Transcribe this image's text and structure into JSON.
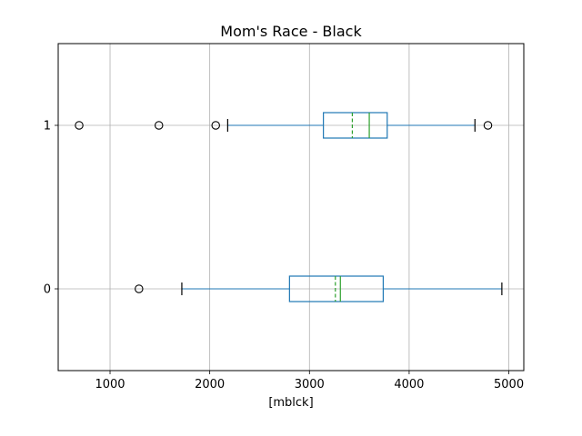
{
  "chart_data": {
    "type": "boxplot",
    "orientation": "horizontal",
    "title": "Mom's Race - Black",
    "xlabel": "[mblck]",
    "ylabel": "",
    "xlim": [
      480,
      5150
    ],
    "x_ticks": [
      1000,
      2000,
      3000,
      4000,
      5000
    ],
    "categories": [
      "0",
      "1"
    ],
    "grid": true,
    "colors": {
      "box": "#1f77b4",
      "median": "#2ca02c",
      "mean": "#2ca02c",
      "whisker": "#1f77b4",
      "cap": "#000000",
      "flier": "#000000"
    },
    "boxes": [
      {
        "category": "0",
        "whisker_low": 1720,
        "q1": 2800,
        "median": 3310,
        "mean": 3260,
        "q3": 3740,
        "whisker_high": 4930,
        "fliers": [
          1290
        ]
      },
      {
        "category": "1",
        "whisker_low": 2180,
        "q1": 3140,
        "median": 3600,
        "mean": 3430,
        "q3": 3780,
        "whisker_high": 4660,
        "fliers": [
          690,
          1490,
          2060,
          4790
        ]
      }
    ]
  }
}
